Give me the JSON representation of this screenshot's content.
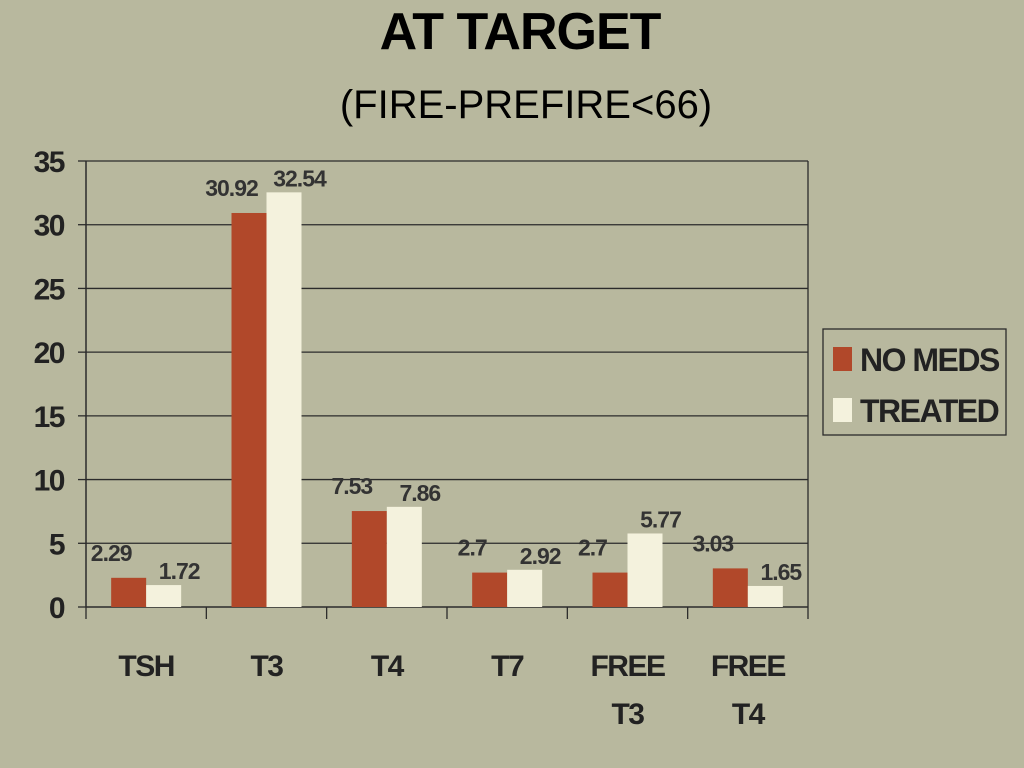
{
  "title": "AT TARGET",
  "subtitle": "(FIRE-PREFIRE<66)",
  "chart_data": {
    "type": "bar",
    "categories": [
      [
        "TSH"
      ],
      [
        "T3"
      ],
      [
        "T4"
      ],
      [
        "T7"
      ],
      [
        "FREE",
        "T3"
      ],
      [
        "FREE",
        "T4"
      ]
    ],
    "series": [
      {
        "name": "NO MEDS",
        "color": "#b1482a",
        "values": [
          2.29,
          30.92,
          7.53,
          2.7,
          2.7,
          3.03
        ],
        "labels": [
          "2.29",
          "30.92",
          "7.53",
          "2.7",
          "2.7",
          "3.03"
        ]
      },
      {
        "name": "TREATED",
        "color": "#f4f2dd",
        "values": [
          1.72,
          32.54,
          7.86,
          2.92,
          5.77,
          1.65
        ],
        "labels": [
          "1.72",
          "32.54",
          "7.86",
          "2.92",
          "5.77",
          "1.65"
        ]
      }
    ],
    "ylim": [
      0,
      35
    ],
    "yticks": [
      "0",
      "5",
      "10",
      "15",
      "20",
      "25",
      "30",
      "35"
    ],
    "grid": true,
    "legend_position": "right"
  }
}
